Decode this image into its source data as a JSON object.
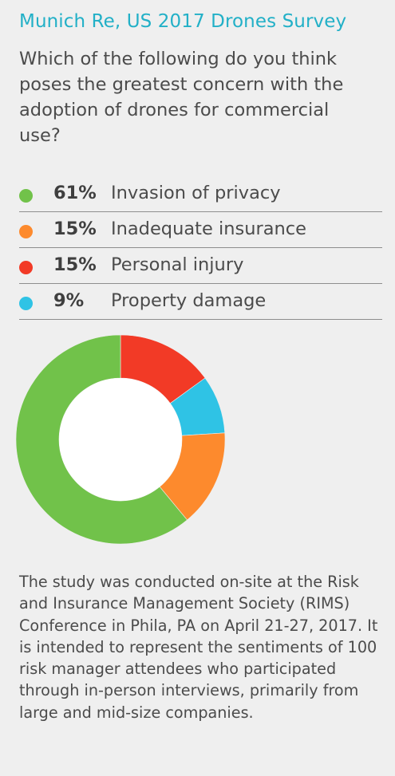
{
  "title": "Munich Re, US 2017 Drones Survey",
  "question": "Which of the following do you think poses the greatest concern with the adoption of drones for commercial use?",
  "legend": [
    {
      "pct": "61%",
      "label": "Invasion of privacy",
      "color": "#71c24a"
    },
    {
      "pct": "15%",
      "label": "Inadequate insurance",
      "color": "#fd8a2d"
    },
    {
      "pct": "15%",
      "label": "Personal injury",
      "color": "#f23a26"
    },
    {
      "pct": "9%",
      "label": "Property damage",
      "color": "#2fc3e5"
    }
  ],
  "chart_data": {
    "type": "pie",
    "variant": "donut",
    "categories": [
      "Invasion of privacy",
      "Inadequate insurance",
      "Personal injury",
      "Property damage"
    ],
    "values": [
      61,
      15,
      15,
      9
    ],
    "unit": "%",
    "colors": [
      "#71c24a",
      "#fd8a2d",
      "#f23a26",
      "#2fc3e5"
    ],
    "slice_order_clockwise_from_top": [
      "Personal injury",
      "Property damage",
      "Inadequate insurance",
      "Invasion of privacy"
    ]
  },
  "note": "The study was conducted on-site at the Risk and Insurance Management Society (RIMS) Conference in Phila, PA on April 21-27, 2017. It is intended to represent the sentiments of 100 risk manager attendees who participated through in-person interviews, primarily from large and mid-size companies."
}
